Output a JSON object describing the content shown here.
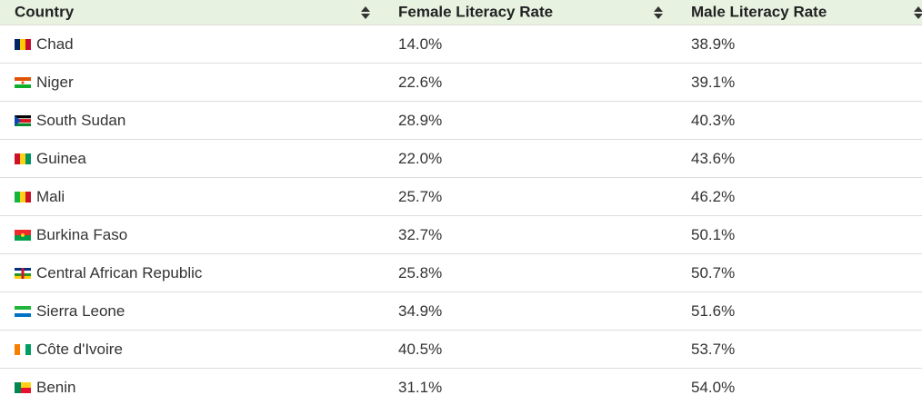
{
  "table": {
    "headers": [
      "Country",
      "Female Literacy Rate",
      "Male Literacy Rate"
    ],
    "rows": [
      [
        "Chad",
        "14.0%",
        "38.9%"
      ],
      [
        "Niger",
        "22.6%",
        "39.1%"
      ],
      [
        "South Sudan",
        "28.9%",
        "40.3%"
      ],
      [
        "Guinea",
        "22.0%",
        "43.6%"
      ],
      [
        "Mali",
        "25.7%",
        "46.2%"
      ],
      [
        "Burkina Faso",
        "32.7%",
        "50.1%"
      ],
      [
        "Central African Republic",
        "25.8%",
        "50.7%"
      ],
      [
        "Sierra Leone",
        "34.9%",
        "51.6%"
      ],
      [
        "Côte d'Ivoire",
        "40.5%",
        "53.7%"
      ],
      [
        "Benin",
        "31.1%",
        "54.0%"
      ]
    ]
  }
}
